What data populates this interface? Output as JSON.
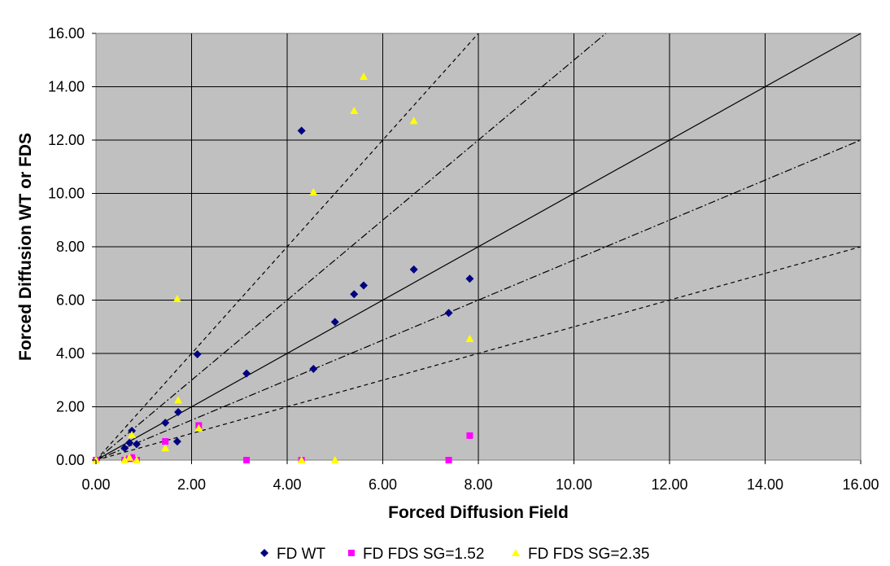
{
  "chart_data": {
    "type": "scatter",
    "xlabel": "Forced Diffusion Field",
    "ylabel": "Forced Diffusion WT or FDS",
    "xlim": [
      0,
      16
    ],
    "ylim": [
      0,
      16
    ],
    "x_ticks": [
      "0.00",
      "2.00",
      "4.00",
      "6.00",
      "8.00",
      "10.00",
      "12.00",
      "14.00",
      "16.00"
    ],
    "y_ticks": [
      "0.00",
      "2.00",
      "4.00",
      "6.00",
      "8.00",
      "10.00",
      "12.00",
      "14.00",
      "16.00"
    ],
    "grid": true,
    "plot_background": "#c0c0c0",
    "legend_position": "bottom",
    "reference_lines": [
      {
        "name": "slope-2",
        "slope": 2,
        "style": "dashed"
      },
      {
        "name": "slope-1.5",
        "slope": 1.5,
        "style": "dash-dot"
      },
      {
        "name": "slope-1",
        "slope": 1,
        "style": "solid"
      },
      {
        "name": "slope-0.75",
        "slope": 0.75,
        "style": "dash-dot"
      },
      {
        "name": "slope-0.5",
        "slope": 0.5,
        "style": "dashed"
      }
    ],
    "series": [
      {
        "name": "FD WT",
        "marker": "diamond",
        "color": "#000080",
        "points": [
          [
            0.0,
            0.0
          ],
          [
            0.6,
            0.45
          ],
          [
            0.7,
            0.65
          ],
          [
            0.75,
            1.1
          ],
          [
            0.85,
            0.6
          ],
          [
            1.45,
            1.4
          ],
          [
            1.7,
            0.7
          ],
          [
            1.72,
            1.8
          ],
          [
            2.12,
            3.97
          ],
          [
            3.15,
            3.25
          ],
          [
            4.3,
            12.35
          ],
          [
            4.55,
            3.42
          ],
          [
            5.0,
            5.18
          ],
          [
            5.4,
            6.22
          ],
          [
            5.6,
            6.55
          ],
          [
            6.65,
            7.15
          ],
          [
            7.38,
            5.52
          ],
          [
            7.82,
            6.8
          ]
        ]
      },
      {
        "name": "FD FDS SG=1.52",
        "marker": "square",
        "color": "#ff00ff",
        "points": [
          [
            0.0,
            0.0
          ],
          [
            0.6,
            0.0
          ],
          [
            0.7,
            0.05
          ],
          [
            0.75,
            0.1
          ],
          [
            0.85,
            0.0
          ],
          [
            1.45,
            0.7
          ],
          [
            2.15,
            1.3
          ],
          [
            3.15,
            0.0
          ],
          [
            4.3,
            0.0
          ],
          [
            7.38,
            0.0
          ],
          [
            7.82,
            0.92
          ]
        ]
      },
      {
        "name": "FD FDS SG=2.35",
        "marker": "triangle",
        "color": "#ffff00",
        "points": [
          [
            0.0,
            0.0
          ],
          [
            0.6,
            0.0
          ],
          [
            0.7,
            0.1
          ],
          [
            0.75,
            0.95
          ],
          [
            0.85,
            0.0
          ],
          [
            1.45,
            0.45
          ],
          [
            1.7,
            6.05
          ],
          [
            1.72,
            2.25
          ],
          [
            2.15,
            1.2
          ],
          [
            4.3,
            0.0
          ],
          [
            4.55,
            10.05
          ],
          [
            5.0,
            0.0
          ],
          [
            5.4,
            13.1
          ],
          [
            5.6,
            14.38
          ],
          [
            6.65,
            12.72
          ],
          [
            7.82,
            4.55
          ]
        ]
      }
    ]
  }
}
